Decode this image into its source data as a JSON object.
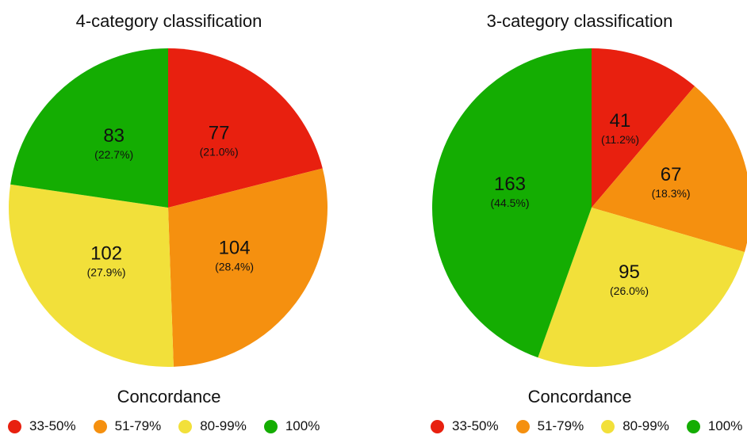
{
  "colors": {
    "33-50%": "#e8200f",
    "51-79%": "#f5900f",
    "80-99%": "#f2e03a",
    "100%": "#14ad02"
  },
  "legend": {
    "title": "Concordance",
    "items": [
      "33-50%",
      "51-79%",
      "80-99%",
      "100%"
    ]
  },
  "chart_data": [
    {
      "type": "pie",
      "title": "4-category classification",
      "categories": [
        "33-50%",
        "51-79%",
        "80-99%",
        "100%"
      ],
      "values": [
        77,
        104,
        102,
        83
      ],
      "labels": [
        "(21.0%)",
        "(28.4%)",
        "(27.9%)",
        "(22.7%)"
      ],
      "legend_title": "Concordance",
      "legend_position": "bottom"
    },
    {
      "type": "pie",
      "title": "3-category classification",
      "categories": [
        "33-50%",
        "51-79%",
        "80-99%",
        "100%"
      ],
      "values": [
        41,
        67,
        95,
        163
      ],
      "labels": [
        "(11.2%)",
        "(18.3%)",
        "(26.0%)",
        "(44.5%)"
      ],
      "legend_title": "Concordance",
      "legend_position": "bottom"
    }
  ]
}
